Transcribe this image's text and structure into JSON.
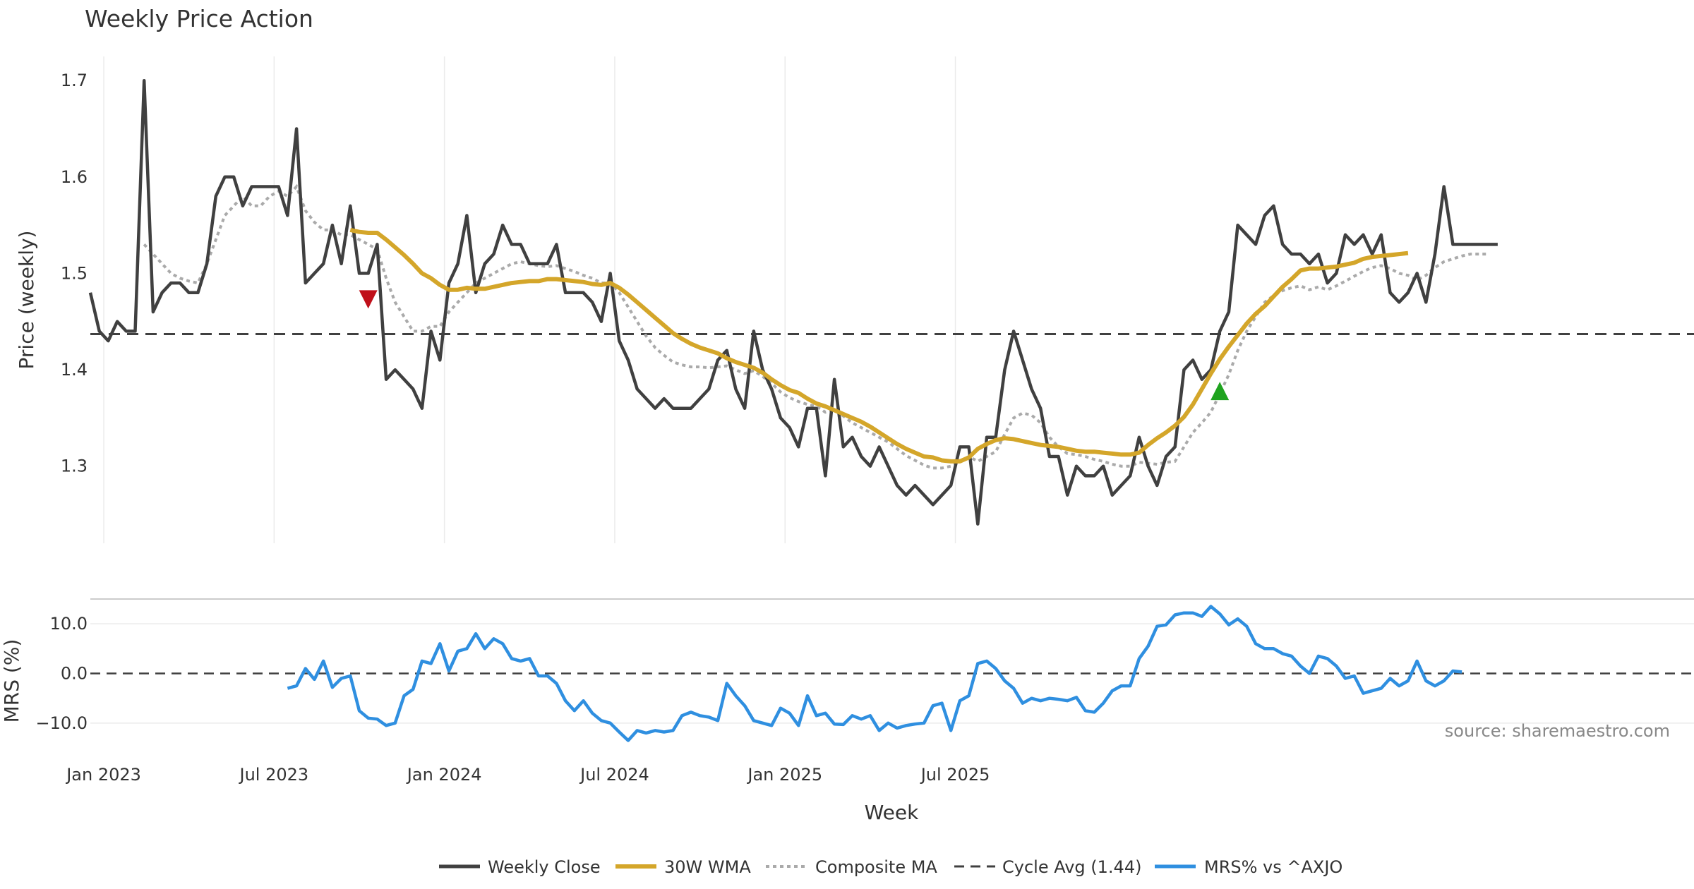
{
  "chart_data": {
    "type": "line",
    "title": "Weekly Price Action",
    "source": "source: sharemaestro.com",
    "xlabel": "Week",
    "x_ticks": [
      "Jan 2023",
      "Jul 2023",
      "Jan 2024",
      "Jul 2024",
      "Jan 2025",
      "Jul 2025"
    ],
    "colors": {
      "close": "#404040",
      "wma": "#d4a62a",
      "composite": "#aaaaaa",
      "cycle": "#404040",
      "mrs": "#2f8fe0",
      "sell": "#c0101a",
      "buy": "#1fa31f"
    },
    "price_panel": {
      "ylabel": "Price (weekly)",
      "ylim": [
        1.22,
        1.725
      ],
      "yticks": [
        "1.3",
        "1.4",
        "1.5",
        "1.6",
        "1.7"
      ],
      "series": [
        {
          "name": "Weekly Close",
          "values": [
            1.48,
            1.44,
            1.43,
            1.45,
            1.44,
            1.44,
            1.7,
            1.46,
            1.48,
            1.49,
            1.49,
            1.48,
            1.48,
            1.51,
            1.58,
            1.6,
            1.6,
            1.57,
            1.59,
            1.59,
            1.59,
            1.59,
            1.56,
            1.65,
            1.49,
            1.5,
            1.51,
            1.55,
            1.51,
            1.57,
            1.5,
            1.5,
            1.53,
            1.39,
            1.4,
            1.39,
            1.38,
            1.36,
            1.44,
            1.41,
            1.49,
            1.51,
            1.56,
            1.48,
            1.51,
            1.52,
            1.55,
            1.53,
            1.53,
            1.51,
            1.51,
            1.51,
            1.53,
            1.48,
            1.48,
            1.48,
            1.47,
            1.45,
            1.5,
            1.43,
            1.41,
            1.38,
            1.37,
            1.36,
            1.37,
            1.36,
            1.36,
            1.36,
            1.37,
            1.38,
            1.41,
            1.42,
            1.38,
            1.36,
            1.44,
            1.4,
            1.38,
            1.35,
            1.34,
            1.32,
            1.36,
            1.36,
            1.29,
            1.39,
            1.32,
            1.33,
            1.31,
            1.3,
            1.32,
            1.3,
            1.28,
            1.27,
            1.28,
            1.27,
            1.26,
            1.27,
            1.28,
            1.32,
            1.32,
            1.24,
            1.33,
            1.33,
            1.4,
            1.44,
            1.41,
            1.38,
            1.36,
            1.31,
            1.31,
            1.27,
            1.3,
            1.29,
            1.29,
            1.3,
            1.27,
            1.28,
            1.29,
            1.33,
            1.3,
            1.28,
            1.31,
            1.32,
            1.4,
            1.41,
            1.39,
            1.4,
            1.44,
            1.46,
            1.55,
            1.54,
            1.53,
            1.56,
            1.57,
            1.53,
            1.52,
            1.52,
            1.51,
            1.52,
            1.49,
            1.5,
            1.54,
            1.53,
            1.54,
            1.52,
            1.54,
            1.48,
            1.47,
            1.48,
            1.5,
            1.47,
            1.52,
            1.59,
            1.53,
            1.53,
            1.53,
            1.53,
            1.53,
            1.53
          ]
        },
        {
          "name": "30W WMA",
          "values": [
            null,
            null,
            null,
            null,
            null,
            null,
            null,
            null,
            null,
            null,
            null,
            null,
            null,
            null,
            null,
            null,
            null,
            null,
            null,
            null,
            null,
            null,
            null,
            null,
            null,
            null,
            null,
            null,
            null,
            1.545,
            1.543,
            1.542,
            1.542,
            1.535,
            1.527,
            1.519,
            1.51,
            1.5,
            1.495,
            1.488,
            1.483,
            1.483,
            1.485,
            1.484,
            1.484,
            1.486,
            1.488,
            1.49,
            1.491,
            1.492,
            1.492,
            1.494,
            1.494,
            1.493,
            1.492,
            1.491,
            1.489,
            1.488,
            1.49,
            1.485,
            1.478,
            1.47,
            1.462,
            1.454,
            1.446,
            1.438,
            1.432,
            1.427,
            1.423,
            1.42,
            1.417,
            1.412,
            1.408,
            1.405,
            1.402,
            1.397,
            1.39,
            1.384,
            1.379,
            1.376,
            1.37,
            1.365,
            1.362,
            1.358,
            1.354,
            1.35,
            1.346,
            1.341,
            1.335,
            1.329,
            1.323,
            1.318,
            1.314,
            1.31,
            1.309,
            1.306,
            1.305,
            1.305,
            1.309,
            1.318,
            1.323,
            1.327,
            1.329,
            1.328,
            1.326,
            1.324,
            1.322,
            1.321,
            1.32,
            1.318,
            1.316,
            1.315,
            1.315,
            1.314,
            1.313,
            1.312,
            1.312,
            1.314,
            1.322,
            1.329,
            1.335,
            1.342,
            1.351,
            1.364,
            1.38,
            1.396,
            1.411,
            1.424,
            1.436,
            1.448,
            1.458,
            1.466,
            1.476,
            1.486,
            1.494,
            1.503,
            1.505,
            1.505,
            1.506,
            1.507,
            1.509,
            1.511,
            1.515,
            1.517,
            1.518,
            1.519,
            1.52,
            1.521
          ]
        },
        {
          "name": "Composite MA",
          "values": [
            null,
            null,
            null,
            null,
            null,
            null,
            1.53,
            1.52,
            1.51,
            1.5,
            1.495,
            1.492,
            1.49,
            1.51,
            1.535,
            1.56,
            1.57,
            1.58,
            1.57,
            1.57,
            1.58,
            1.585,
            1.58,
            1.59,
            1.565,
            1.553,
            1.545,
            1.545,
            1.54,
            1.54,
            1.535,
            1.53,
            1.525,
            1.495,
            1.47,
            1.455,
            1.44,
            1.44,
            1.445,
            1.445,
            1.46,
            1.47,
            1.48,
            1.49,
            1.495,
            1.5,
            1.505,
            1.51,
            1.512,
            1.51,
            1.508,
            1.507,
            1.508,
            1.505,
            1.502,
            1.498,
            1.495,
            1.49,
            1.49,
            1.48,
            1.465,
            1.45,
            1.435,
            1.423,
            1.415,
            1.408,
            1.405,
            1.403,
            1.403,
            1.402,
            1.403,
            1.404,
            1.4,
            1.396,
            1.399,
            1.393,
            1.386,
            1.377,
            1.371,
            1.367,
            1.364,
            1.362,
            1.356,
            1.358,
            1.352,
            1.345,
            1.34,
            1.335,
            1.33,
            1.325,
            1.318,
            1.311,
            1.306,
            1.301,
            1.298,
            1.298,
            1.3,
            1.305,
            1.31,
            1.305,
            1.31,
            1.315,
            1.333,
            1.35,
            1.355,
            1.353,
            1.345,
            1.33,
            1.32,
            1.313,
            1.312,
            1.31,
            1.307,
            1.305,
            1.302,
            1.3,
            1.3,
            1.304,
            1.303,
            1.302,
            1.304,
            1.305,
            1.32,
            1.335,
            1.345,
            1.356,
            1.375,
            1.395,
            1.42,
            1.44,
            1.455,
            1.47,
            1.477,
            1.482,
            1.485,
            1.487,
            1.483,
            1.486,
            1.483,
            1.487,
            1.492,
            1.497,
            1.502,
            1.506,
            1.508,
            1.505,
            1.5,
            1.498,
            1.493,
            1.498,
            1.506,
            1.512,
            1.515,
            1.518,
            1.52,
            1.52,
            1.52
          ]
        }
      ],
      "cycle_avg": {
        "name": "Cycle Avg (1.44)",
        "value": 1.437
      },
      "markers": [
        {
          "type": "sell",
          "x": 31,
          "y": 1.473
        },
        {
          "type": "buy",
          "x": 126,
          "y": 1.378
        }
      ]
    },
    "mrs_panel": {
      "ylabel": "MRS (%)",
      "ylim": [
        -15,
        15
      ],
      "yticks": [
        "−10.0",
        "0.0",
        "10.0"
      ],
      "series": [
        {
          "name": "MRS% vs ^AXJO",
          "values": [
            null,
            null,
            null,
            null,
            null,
            null,
            null,
            null,
            null,
            null,
            null,
            null,
            null,
            null,
            null,
            null,
            null,
            null,
            null,
            null,
            null,
            null,
            -3,
            -2.5,
            1,
            -1.2,
            2.5,
            -2.8,
            -1,
            -0.5,
            -7.5,
            -9,
            -9.2,
            -10.5,
            -10,
            -4.5,
            -3.2,
            2.5,
            2,
            6,
            0.5,
            4.5,
            5,
            8,
            5,
            7,
            6,
            3,
            2.5,
            3,
            -0.5,
            -0.5,
            -2,
            -5.5,
            -7.5,
            -5.5,
            -8,
            -9.5,
            -10,
            -11.8,
            -13.5,
            -11.5,
            -12,
            -11.5,
            -11.8,
            -11.5,
            -8.5,
            -7.8,
            -8.5,
            -8.8,
            -9.5,
            -2,
            -4.5,
            -6.5,
            -9.5,
            -10,
            -10.5,
            -7,
            -8,
            -10.5,
            -4.5,
            -8.5,
            -8,
            -10.2,
            -10.3,
            -8.5,
            -9.2,
            -8.5,
            -11.5,
            -10,
            -11,
            -10.5,
            -10.2,
            -10,
            -6.5,
            -6,
            -11.5,
            -5.5,
            -4.5,
            2,
            2.5,
            1,
            -1.5,
            -3,
            -6,
            -5,
            -5.5,
            -5,
            -5.2,
            -5.5,
            -4.8,
            -7.5,
            -7.8,
            -6,
            -3.5,
            -2.5,
            -2.5,
            3,
            5.5,
            9.5,
            9.8,
            11.8,
            12.2,
            12.2,
            11.5,
            13.5,
            12,
            9.8,
            11,
            9.5,
            6,
            5,
            5,
            4,
            3.5,
            1.5,
            0,
            3.5,
            3,
            1.5,
            -1,
            -0.5,
            -4,
            -3.5,
            -3,
            -1,
            -2.5,
            -1.5,
            2.5,
            -1.5,
            -2.5,
            -1.5,
            0.5,
            0.3
          ]
        }
      ]
    },
    "legend": [
      "Weekly Close",
      "30W WMA",
      "Composite MA",
      "Cycle Avg (1.44)",
      "MRS% vs ^AXJO"
    ]
  }
}
